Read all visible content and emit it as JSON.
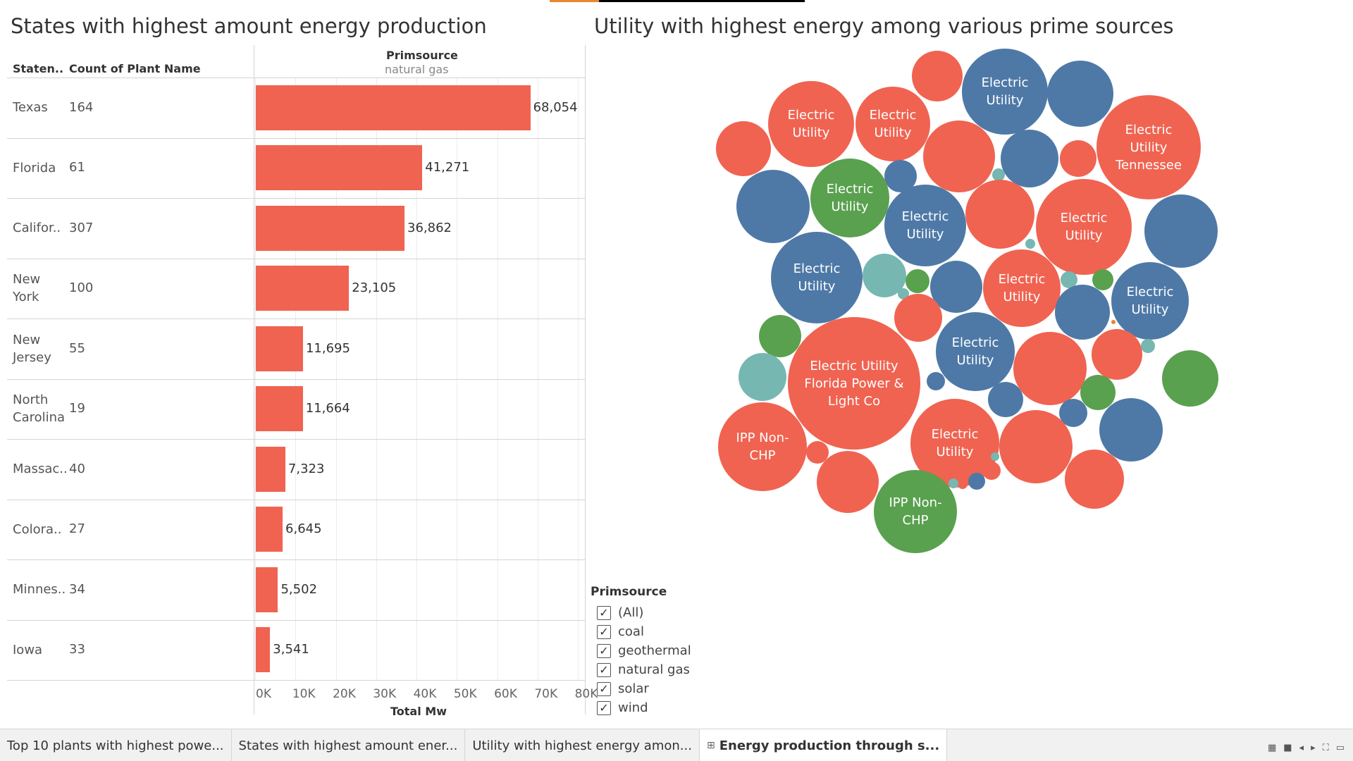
{
  "titles": {
    "left": "States with highest amount energy production",
    "right": "Utility with highest energy among various prime sources"
  },
  "bar_table": {
    "col_state": "Staten..",
    "col_count": "Count of Plant Name",
    "filter_label": "Primsource",
    "filter_value": "natural gas",
    "axis_title": "Total Mw",
    "ticks": [
      "0K",
      "10K",
      "20K",
      "30K",
      "40K",
      "50K",
      "60K",
      "70K",
      "80K"
    ]
  },
  "chart_data": [
    {
      "type": "bar",
      "title": "States with highest amount energy production",
      "xlabel": "Total Mw",
      "xlim": [
        0,
        80000
      ],
      "orientation": "horizontal",
      "rows": [
        {
          "state": [
            "Texas"
          ],
          "count": "164",
          "value": 68054,
          "label": "68,054"
        },
        {
          "state": [
            "Florida"
          ],
          "count": "61",
          "value": 41271,
          "label": "41,271"
        },
        {
          "state": [
            "Califor.."
          ],
          "count": "307",
          "value": 36862,
          "label": "36,862"
        },
        {
          "state": [
            "New",
            "York"
          ],
          "count": "100",
          "value": 23105,
          "label": "23,105"
        },
        {
          "state": [
            "New",
            "Jersey"
          ],
          "count": "55",
          "value": 11695,
          "label": "11,695"
        },
        {
          "state": [
            "North",
            "Carolina"
          ],
          "count": "19",
          "value": 11664,
          "label": "11,664"
        },
        {
          "state": [
            "Massac.."
          ],
          "count": "40",
          "value": 7323,
          "label": "7,323"
        },
        {
          "state": [
            "Colora.."
          ],
          "count": "27",
          "value": 6645,
          "label": "6,645"
        },
        {
          "state": [
            "Minnes.."
          ],
          "count": "34",
          "value": 5502,
          "label": "5,502"
        },
        {
          "state": [
            "Iowa"
          ],
          "count": "33",
          "value": 3541,
          "label": "3,541"
        }
      ]
    },
    {
      "type": "bubble",
      "title": "Utility with highest energy among various prime sources",
      "colors": {
        "natural gas": "#f06351",
        "coal": "#4e79a7",
        "solar": "#59a14f",
        "geothermal": "#76b7b2",
        "wind": "#e8882d"
      },
      "labels": [
        "Electric Utility",
        "Electric Utility",
        "Electric Utility",
        "Electric Utility Tennessee",
        "Electric Utility",
        "Electric Utility",
        "Electric Utility",
        "Electric Utility",
        "Electric Utility",
        "Electric Utility",
        "Electric Utility Florida Power & Light Co",
        "Electric Utility",
        "IPP Non-CHP",
        "IPP Non-CHP"
      ]
    }
  ],
  "legend": {
    "title": "Primsource",
    "items": [
      "(All)",
      "coal",
      "geothermal",
      "natural gas",
      "solar",
      "wind"
    ]
  },
  "tabs": [
    "Top 10 plants with highest powe...",
    "States with highest amount ener...",
    "Utility with highest energy amon...",
    "Energy production through s..."
  ],
  "active_tab": 3
}
